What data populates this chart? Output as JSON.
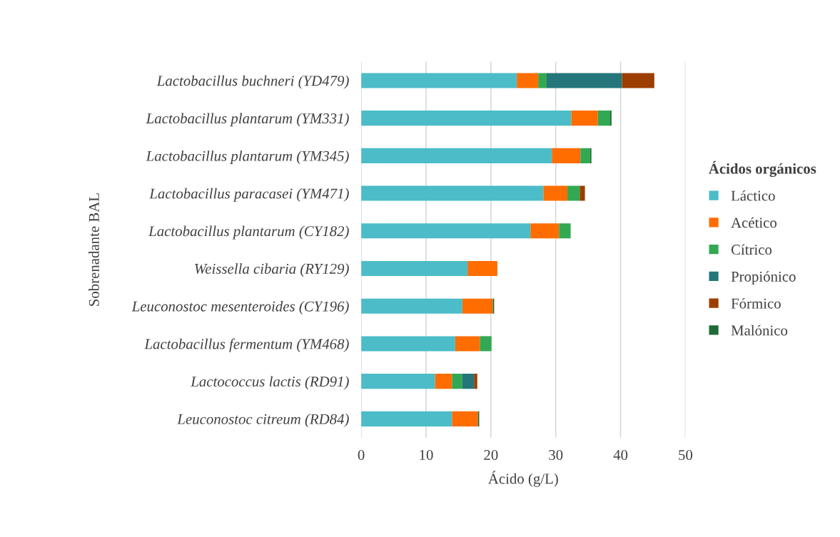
{
  "chart_data": {
    "type": "bar",
    "orientation": "horizontal",
    "stacked": true,
    "categories": [
      "Lactobacillus buchneri (YD479)",
      "Lactobacillus plantarum (YM331)",
      "Lactobacillus plantarum (YM345)",
      "Lactobacillus paracasei (YM471)",
      "Lactobacillus plantarum (CY182)",
      "Weissella cibaria (RY129)",
      "Leuconostoc mesenteroides (CY196)",
      "Lactobacillus fermentum (YM468)",
      "Lactococcus lactis (RD91)",
      "Leuconostoc citreum (RD84)"
    ],
    "series": [
      {
        "name": "Láctico",
        "color": "#4bbcc8",
        "values": [
          24.0,
          32.4,
          29.4,
          28.1,
          26.1,
          16.4,
          15.6,
          14.5,
          11.4,
          14.0
        ]
      },
      {
        "name": "Acético",
        "color": "#ff6d00",
        "values": [
          3.3,
          4.1,
          4.4,
          3.7,
          4.4,
          4.6,
          4.7,
          3.8,
          2.6,
          4.0
        ]
      },
      {
        "name": "Cítrico",
        "color": "#33a852",
        "values": [
          1.3,
          1.9,
          1.5,
          1.9,
          1.8,
          null,
          null,
          1.8,
          1.6,
          null
        ]
      },
      {
        "name": "Propiónico",
        "color": "#24767a",
        "values": [
          11.6,
          null,
          null,
          null,
          null,
          null,
          null,
          null,
          1.8,
          null
        ]
      },
      {
        "name": "Fórmico",
        "color": "#9b3e00",
        "values": [
          5.0,
          null,
          null,
          0.8,
          null,
          null,
          null,
          null,
          0.5,
          null
        ]
      },
      {
        "name": "Malónico",
        "color": "#1e6b38",
        "values": [
          null,
          0.2,
          0.2,
          null,
          null,
          null,
          0.2,
          null,
          null,
          0.2
        ]
      }
    ],
    "xlabel": "Ácido (g/L)",
    "ylabel": "Sobrenadante BAL",
    "legend_title": "Ácidos orgánicos",
    "xlim": [
      0,
      50
    ],
    "xticks": [
      0,
      10,
      20,
      30,
      40,
      50
    ],
    "grid": "x",
    "legend": "right"
  }
}
